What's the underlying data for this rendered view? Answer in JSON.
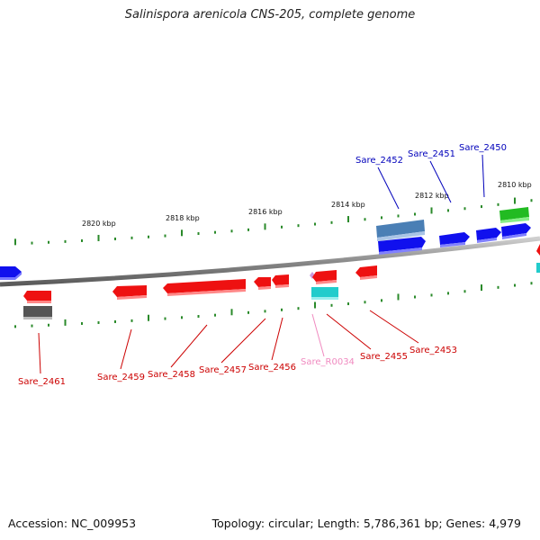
{
  "title": "Salinispora arenicola CNS-205, complete genome",
  "footer": {
    "accession": "Accession: NC_009953",
    "summary": "Topology: circular; Length: 5,786,361 bp; Genes: 4,979"
  },
  "colors": {
    "forward_gene": "#1010ee",
    "reverse_gene": "#ee1111",
    "forward_label": "#0000bb",
    "reverse_label": "#cc0000",
    "rna_label": "#f08ac0",
    "backbone": "#8a8a8a",
    "tick": "#2a8a2a"
  },
  "kbp_labels": [
    "2820 kbp",
    "2818 kbp",
    "2816 kbp",
    "2814 kbp",
    "2812 kbp",
    "2810 kbp"
  ],
  "gene_labels": {
    "top": [
      "Sare_2452",
      "Sare_2451",
      "Sare_2450"
    ],
    "bottom": [
      "Sare_2461",
      "Sare_2459",
      "Sare_2458",
      "Sare_2457",
      "Sare_2456",
      "Sare_R0034",
      "Sare_2455",
      "Sare_2453"
    ]
  }
}
